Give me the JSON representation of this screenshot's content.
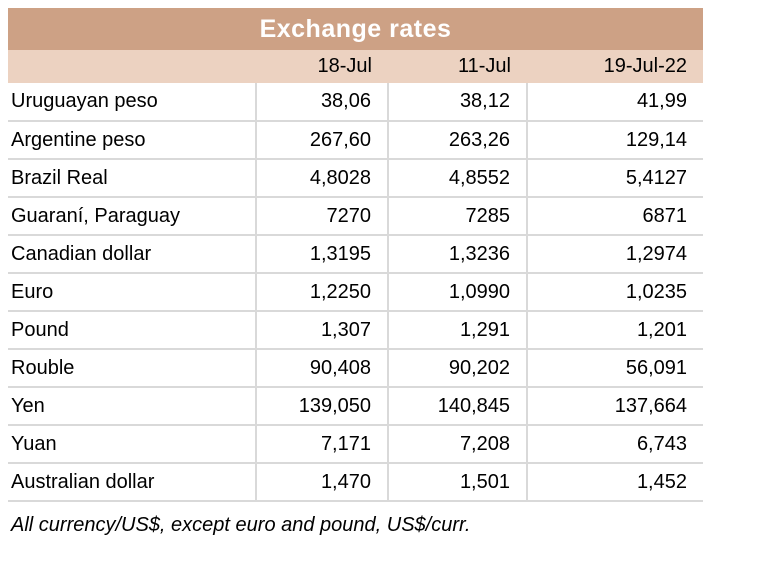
{
  "colors": {
    "title_bg": "#cda185",
    "header_bg": "#ecd2c1",
    "grid": "#d9d9d9",
    "title_text": "#ffffff",
    "text": "#000000"
  },
  "chart_data": {
    "type": "table",
    "title": "Exchange rates",
    "columns": [
      "",
      "18-Jul",
      "11-Jul",
      "19-Jul-22"
    ],
    "rows": [
      [
        "Uruguayan peso",
        "38,06",
        "38,12",
        "41,99"
      ],
      [
        "Argentine peso",
        "267,60",
        "263,26",
        "129,14"
      ],
      [
        "Brazil Real",
        "4,8028",
        "4,8552",
        "5,4127"
      ],
      [
        "Guaraní, Paraguay",
        "7270",
        "7285",
        "6871"
      ],
      [
        "Canadian dollar",
        "1,3195",
        "1,3236",
        "1,2974"
      ],
      [
        "Euro",
        "1,2250",
        "1,0990",
        "1,0235"
      ],
      [
        "Pound",
        "1,307",
        "1,291",
        "1,201"
      ],
      [
        "Rouble",
        "90,408",
        "90,202",
        "56,091"
      ],
      [
        "Yen",
        "139,050",
        "140,845",
        "137,664"
      ],
      [
        "Yuan",
        "7,171",
        "7,208",
        "6,743"
      ],
      [
        "Australian dollar",
        "1,470",
        "1,501",
        "1,452"
      ]
    ],
    "footnote": "All currency/US$, except euro and pound, US$/curr.",
    "layout": {
      "grid": "light-gray row and column separators",
      "header_position": "top",
      "value_alignment": "right"
    }
  }
}
